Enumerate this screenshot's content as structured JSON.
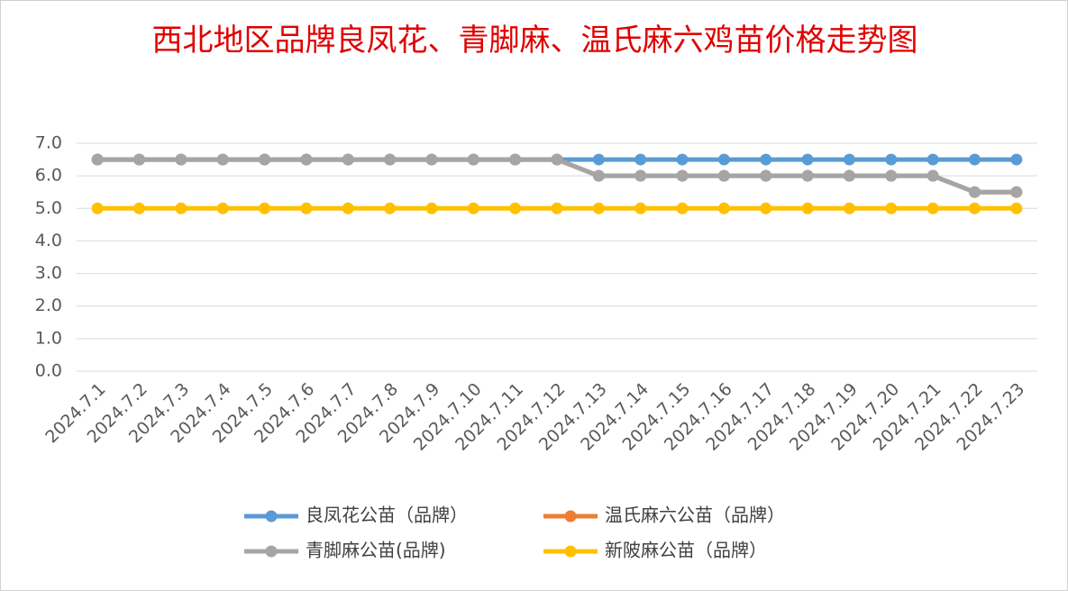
{
  "chart_data": {
    "type": "line",
    "title": "西北地区品牌良凤花、青脚麻、温氏麻六鸡苗价格走势图",
    "categories": [
      "2024.7.1",
      "2024.7.2",
      "2024.7.3",
      "2024.7.4",
      "2024.7.5",
      "2024.7.6",
      "2024.7.7",
      "2024.7.8",
      "2024.7.9",
      "2024.7.10",
      "2024.7.11",
      "2024.7.12",
      "2024.7.13",
      "2024.7.14",
      "2024.7.15",
      "2024.7.16",
      "2024.7.17",
      "2024.7.18",
      "2024.7.19",
      "2024.7.20",
      "2024.7.21",
      "2024.7.22",
      "2024.7.23"
    ],
    "series": [
      {
        "name": "良凤花公苗（品牌）",
        "color": "#5b9bd5",
        "values": [
          6.5,
          6.5,
          6.5,
          6.5,
          6.5,
          6.5,
          6.5,
          6.5,
          6.5,
          6.5,
          6.5,
          6.5,
          6.5,
          6.5,
          6.5,
          6.5,
          6.5,
          6.5,
          6.5,
          6.5,
          6.5,
          6.5,
          6.5
        ]
      },
      {
        "name": "温氏麻六公苗（品牌）",
        "color": "#ed7d31",
        "values": [
          6.5,
          6.5,
          6.5,
          6.5,
          6.5,
          6.5,
          6.5,
          6.5,
          6.5,
          6.5,
          6.5,
          6.5,
          6.0,
          6.0,
          6.0,
          6.0,
          6.0,
          6.0,
          6.0,
          6.0,
          6.0,
          5.5,
          5.5
        ]
      },
      {
        "name": "青脚麻公苗(品牌)",
        "color": "#a5a5a5",
        "values": [
          6.5,
          6.5,
          6.5,
          6.5,
          6.5,
          6.5,
          6.5,
          6.5,
          6.5,
          6.5,
          6.5,
          6.5,
          6.0,
          6.0,
          6.0,
          6.0,
          6.0,
          6.0,
          6.0,
          6.0,
          6.0,
          5.5,
          5.5
        ]
      },
      {
        "name": "新陂麻公苗（品牌）",
        "color": "#ffc000",
        "values": [
          5.0,
          5.0,
          5.0,
          5.0,
          5.0,
          5.0,
          5.0,
          5.0,
          5.0,
          5.0,
          5.0,
          5.0,
          5.0,
          5.0,
          5.0,
          5.0,
          5.0,
          5.0,
          5.0,
          5.0,
          5.0,
          5.0,
          5.0
        ]
      }
    ],
    "ylim": [
      0,
      7
    ],
    "yticks": [
      {
        "value": 0,
        "label": "0.0"
      },
      {
        "value": 1,
        "label": "1.0"
      },
      {
        "value": 2,
        "label": "2.0"
      },
      {
        "value": 3,
        "label": "3.0"
      },
      {
        "value": 4,
        "label": "4.0"
      },
      {
        "value": 5,
        "label": "5.0"
      },
      {
        "value": 6,
        "label": "6.0"
      },
      {
        "value": 7,
        "label": "7.0"
      }
    ],
    "grid": true
  }
}
